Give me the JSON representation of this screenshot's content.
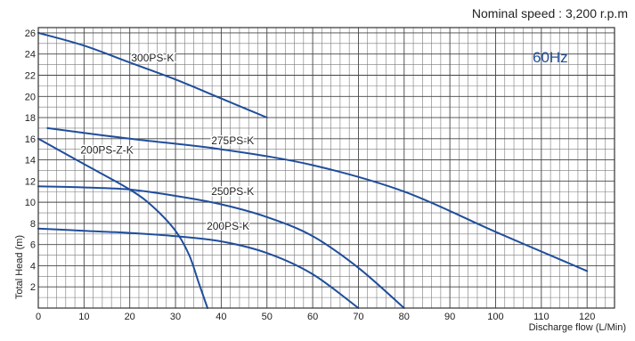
{
  "header": {
    "speed_note": "Nominal speed : 3,200 r.p.m"
  },
  "annotation": {
    "frequency": "60Hz"
  },
  "chart_data": {
    "type": "line",
    "title": "",
    "xlabel": "Discharge flow (L/Min)",
    "ylabel": "Total Head (m)",
    "xlim": [
      0,
      126
    ],
    "ylim": [
      0,
      26.5
    ],
    "x_ticks": [
      0,
      10,
      20,
      30,
      40,
      50,
      60,
      70,
      80,
      90,
      100,
      110,
      120
    ],
    "y_ticks": [
      2,
      4,
      6,
      8,
      10,
      12,
      14,
      16,
      18,
      20,
      22,
      24,
      26
    ],
    "grid": true,
    "line_color": "#1f4e9c",
    "series": [
      {
        "name": "300PS-K",
        "x": [
          0,
          10,
          20,
          30,
          40,
          50
        ],
        "y": [
          26,
          24.8,
          23.2,
          21.6,
          19.8,
          18
        ]
      },
      {
        "name": "275PS-K",
        "x": [
          2,
          20,
          40,
          60,
          80,
          100,
          120
        ],
        "y": [
          17,
          16,
          15,
          13.5,
          11,
          7.2,
          3.5
        ]
      },
      {
        "name": "200PS-Z-K",
        "x": [
          0,
          10,
          20,
          25,
          30,
          33,
          35,
          37
        ],
        "y": [
          16,
          13.6,
          11.2,
          9.6,
          7.3,
          5,
          2.5,
          0
        ]
      },
      {
        "name": "250PS-K",
        "x": [
          0,
          10,
          20,
          30,
          40,
          50,
          60,
          70,
          80
        ],
        "y": [
          11.5,
          11.4,
          11.2,
          10.6,
          9.8,
          8.6,
          6.8,
          3.8,
          0
        ]
      },
      {
        "name": "200PS-K",
        "x": [
          0,
          10,
          20,
          30,
          40,
          50,
          60,
          70
        ],
        "y": [
          7.5,
          7.3,
          7.1,
          6.8,
          6.3,
          5.2,
          3.2,
          0
        ]
      }
    ],
    "series_labels": [
      {
        "text": "300PS-K",
        "x": 25,
        "y": 23.3
      },
      {
        "text": "275PS-K",
        "x": 42.5,
        "y": 15.5
      },
      {
        "text": "200PS-Z-K",
        "x": 15,
        "y": 14.6
      },
      {
        "text": "250PS-K",
        "x": 42.5,
        "y": 10.7
      },
      {
        "text": "200PS-K",
        "x": 41.5,
        "y": 7.4
      }
    ]
  }
}
